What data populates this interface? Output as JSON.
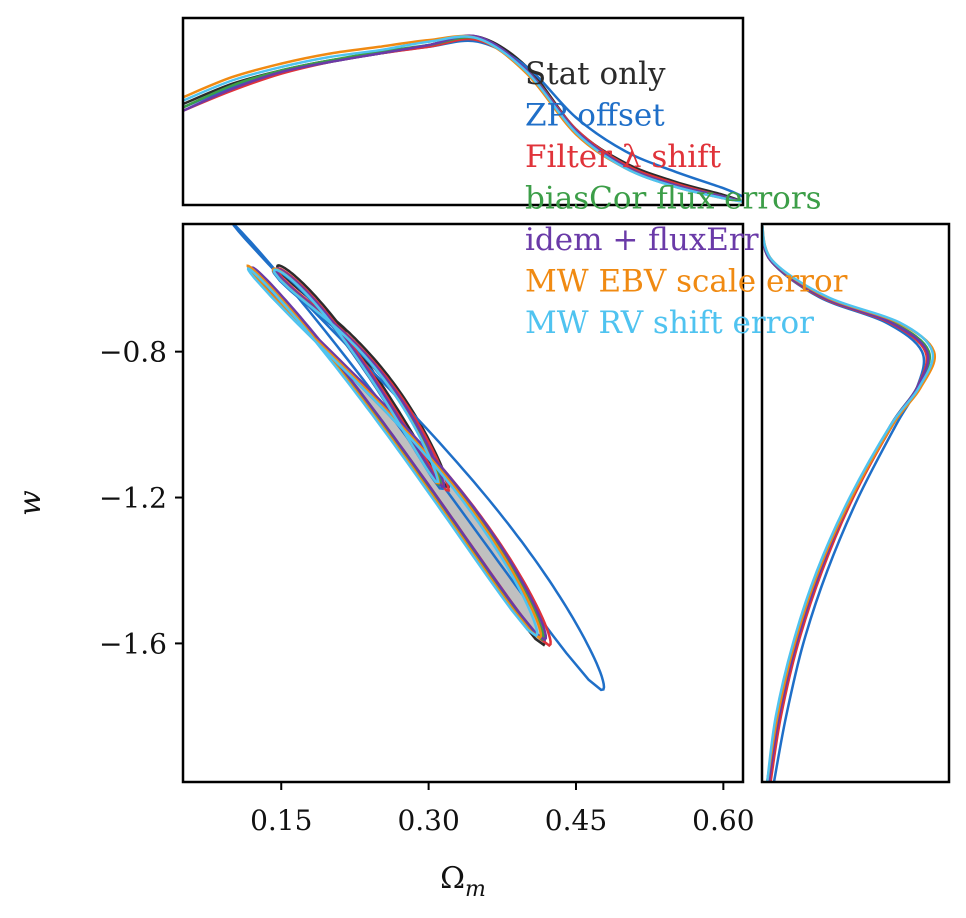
{
  "chart_data": {
    "type": "corner-contour",
    "xlabel": "Ω",
    "xlabel_sub": "m",
    "ylabel": "w",
    "xlim": [
      0.05,
      0.62
    ],
    "ylim": [
      -1.98,
      -0.45
    ],
    "xticks": [
      0.15,
      0.3,
      0.45,
      0.6
    ],
    "xtick_labels": [
      "0.15",
      "0.30",
      "0.45",
      "0.60"
    ],
    "yticks": [
      -0.8,
      -1.2,
      -1.6
    ],
    "ytick_labels": [
      "−0.8",
      "−1.2",
      "−1.6"
    ],
    "legend_placement": "upper-right, overlapping panels",
    "series": [
      {
        "name": "Stat only",
        "color": "#2b2b2b",
        "filled": true,
        "fill_color": "#c0c0c0",
        "inner": {
          "center": [
            0.235,
            -0.88
          ],
          "ry": 0.075,
          "length": 0.285
        },
        "outer": {
          "center": [
            0.275,
            -1.12
          ],
          "ry": 0.19,
          "length": 0.46
        }
      },
      {
        "name": "ZP offset",
        "color": "#1f6fc8",
        "inner": {
          "center": [
            0.23,
            -0.89
          ],
          "ry": 0.08,
          "length": 0.28
        },
        "outer": {
          "center": [
            0.3,
            -1.13
          ],
          "ry": 0.27,
          "length": 0.56
        }
      },
      {
        "name": "Filter λ shift",
        "color": "#e0333a",
        "inner": {
          "center": [
            0.235,
            -0.89
          ],
          "ry": 0.078,
          "length": 0.285
        },
        "outer": {
          "center": [
            0.28,
            -1.12
          ],
          "ry": 0.2,
          "length": 0.46
        }
      },
      {
        "name": "biasCor flux errors",
        "color": "#3c9e48",
        "inner": {
          "center": [
            0.23,
            -0.885
          ],
          "ry": 0.075,
          "length": 0.275
        },
        "outer": {
          "center": [
            0.275,
            -1.11
          ],
          "ry": 0.19,
          "length": 0.455
        }
      },
      {
        "name": "idem + fluxErr",
        "color": "#6a3aa8",
        "inner": {
          "center": [
            0.232,
            -0.885
          ],
          "ry": 0.076,
          "length": 0.28
        },
        "outer": {
          "center": [
            0.277,
            -1.11
          ],
          "ry": 0.195,
          "length": 0.455
        }
      },
      {
        "name": "MW EBV scale error",
        "color": "#f08a12",
        "inner": {
          "center": [
            0.228,
            -0.88
          ],
          "ry": 0.075,
          "length": 0.275
        },
        "outer": {
          "center": [
            0.272,
            -1.105
          ],
          "ry": 0.195,
          "length": 0.455
        }
      },
      {
        "name": "MW RV shift error",
        "color": "#4fc3f0",
        "inner": {
          "center": [
            0.228,
            -0.88
          ],
          "ry": 0.074,
          "length": 0.272
        },
        "outer": {
          "center": [
            0.27,
            -1.105
          ],
          "ry": 0.19,
          "length": 0.45
        }
      }
    ],
    "marginal_top": {
      "variable": "Ω_m",
      "x": [
        0.05,
        0.1,
        0.15,
        0.2,
        0.25,
        0.3,
        0.35,
        0.4,
        0.45,
        0.5,
        0.55,
        0.6,
        0.62
      ],
      "density_by_series": {
        "Stat only": [
          0.6,
          0.72,
          0.8,
          0.86,
          0.9,
          0.95,
          1.0,
          0.82,
          0.45,
          0.25,
          0.14,
          0.06,
          0.02
        ],
        "ZP offset": [
          0.58,
          0.7,
          0.79,
          0.85,
          0.9,
          0.94,
          0.97,
          0.82,
          0.52,
          0.32,
          0.2,
          0.1,
          0.05
        ],
        "Filter λ shift": [
          0.56,
          0.68,
          0.78,
          0.85,
          0.9,
          0.94,
          0.98,
          0.8,
          0.45,
          0.24,
          0.13,
          0.05,
          0.02
        ],
        "biasCor flux errors": [
          0.58,
          0.71,
          0.8,
          0.86,
          0.91,
          0.95,
          0.99,
          0.8,
          0.44,
          0.23,
          0.12,
          0.05,
          0.02
        ],
        "idem + fluxErr": [
          0.56,
          0.69,
          0.79,
          0.85,
          0.9,
          0.95,
          1.0,
          0.8,
          0.44,
          0.23,
          0.12,
          0.05,
          0.02
        ],
        "MW EBV scale error": [
          0.64,
          0.76,
          0.84,
          0.9,
          0.94,
          0.98,
          0.99,
          0.78,
          0.42,
          0.22,
          0.11,
          0.04,
          0.02
        ],
        "MW RV shift error": [
          0.62,
          0.74,
          0.82,
          0.88,
          0.92,
          0.97,
          0.99,
          0.79,
          0.43,
          0.22,
          0.11,
          0.04,
          0.02
        ]
      }
    },
    "marginal_right": {
      "variable": "w",
      "y": [
        -0.45,
        -0.55,
        -0.65,
        -0.72,
        -0.8,
        -0.9,
        -1.0,
        -1.2,
        -1.4,
        -1.6,
        -1.8,
        -1.98
      ],
      "density_by_series": {
        "Stat only": [
          0.0,
          0.05,
          0.35,
          0.75,
          0.96,
          0.9,
          0.76,
          0.52,
          0.34,
          0.2,
          0.1,
          0.04
        ],
        "ZP offset": [
          0.0,
          0.05,
          0.33,
          0.72,
          0.93,
          0.9,
          0.78,
          0.56,
          0.38,
          0.24,
          0.14,
          0.07
        ],
        "Filter λ shift": [
          0.0,
          0.05,
          0.34,
          0.74,
          0.95,
          0.9,
          0.76,
          0.53,
          0.35,
          0.21,
          0.11,
          0.05
        ],
        "biasCor flux errors": [
          0.0,
          0.05,
          0.35,
          0.76,
          0.97,
          0.9,
          0.75,
          0.52,
          0.33,
          0.19,
          0.09,
          0.03
        ],
        "idem + fluxErr": [
          0.0,
          0.05,
          0.35,
          0.75,
          0.96,
          0.9,
          0.75,
          0.52,
          0.34,
          0.2,
          0.1,
          0.04
        ],
        "MW EBV scale error": [
          0.0,
          0.06,
          0.37,
          0.79,
          1.0,
          0.92,
          0.76,
          0.52,
          0.33,
          0.19,
          0.09,
          0.03
        ],
        "MW RV shift error": [
          0.0,
          0.06,
          0.38,
          0.8,
          0.99,
          0.91,
          0.75,
          0.51,
          0.32,
          0.18,
          0.08,
          0.03
        ]
      }
    }
  }
}
